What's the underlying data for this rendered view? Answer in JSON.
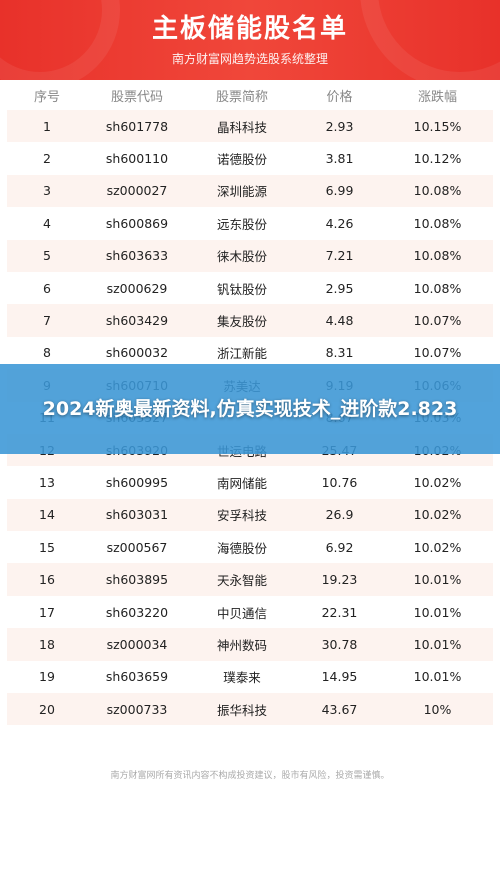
{
  "header": {
    "title": "主板储能股名单",
    "subtitle": "南方财富网趋势选股系统整理"
  },
  "columns": [
    "序号",
    "股票代码",
    "股票简称",
    "价格",
    "涨跌幅"
  ],
  "rows": [
    {
      "no": "1",
      "code": "sh601778",
      "name": "晶科科技",
      "price": "2.93",
      "change": "10.15%"
    },
    {
      "no": "2",
      "code": "sh600110",
      "name": "诺德股份",
      "price": "3.81",
      "change": "10.12%"
    },
    {
      "no": "3",
      "code": "sz000027",
      "name": "深圳能源",
      "price": "6.99",
      "change": "10.08%"
    },
    {
      "no": "4",
      "code": "sh600869",
      "name": "远东股份",
      "price": "4.26",
      "change": "10.08%"
    },
    {
      "no": "5",
      "code": "sh603633",
      "name": "徕木股份",
      "price": "7.21",
      "change": "10.08%"
    },
    {
      "no": "6",
      "code": "sz000629",
      "name": "钒钛股份",
      "price": "2.95",
      "change": "10.08%"
    },
    {
      "no": "7",
      "code": "sh603429",
      "name": "集友股份",
      "price": "4.48",
      "change": "10.07%"
    },
    {
      "no": "8",
      "code": "sh600032",
      "name": "浙江新能",
      "price": "8.31",
      "change": "10.07%"
    },
    {
      "no": "9",
      "code": "sh600710",
      "name": "苏美达",
      "price": "9.19",
      "change": "10.06%"
    },
    {
      "no": "11",
      "code": "sh603527",
      "name": "",
      "price": "8.67",
      "change": "10.03%"
    },
    {
      "no": "12",
      "code": "sh603920",
      "name": "世运电路",
      "price": "25.47",
      "change": "10.02%"
    },
    {
      "no": "13",
      "code": "sh600995",
      "name": "南网储能",
      "price": "10.76",
      "change": "10.02%"
    },
    {
      "no": "14",
      "code": "sh603031",
      "name": "安孚科技",
      "price": "26.9",
      "change": "10.02%"
    },
    {
      "no": "15",
      "code": "sz000567",
      "name": "海德股份",
      "price": "6.92",
      "change": "10.02%"
    },
    {
      "no": "16",
      "code": "sh603895",
      "name": "天永智能",
      "price": "19.23",
      "change": "10.01%"
    },
    {
      "no": "17",
      "code": "sh603220",
      "name": "中贝通信",
      "price": "22.31",
      "change": "10.01%"
    },
    {
      "no": "18",
      "code": "sz000034",
      "name": "神州数码",
      "price": "30.78",
      "change": "10.01%"
    },
    {
      "no": "19",
      "code": "sh603659",
      "name": "璞泰来",
      "price": "14.95",
      "change": "10.01%"
    },
    {
      "no": "20",
      "code": "sz000733",
      "name": "振华科技",
      "price": "43.67",
      "change": "10%"
    }
  ],
  "footer": "南方财富网所有资讯内容不构成投资建议，股市有风险，投资需谨慎。",
  "banner": "2024新奥最新资料,仿真实现技术_进阶款2.823",
  "colors": {
    "header_red": "#e8312a",
    "row_alt": "#fdf3ef",
    "banner_blue": "#3a96d6"
  }
}
